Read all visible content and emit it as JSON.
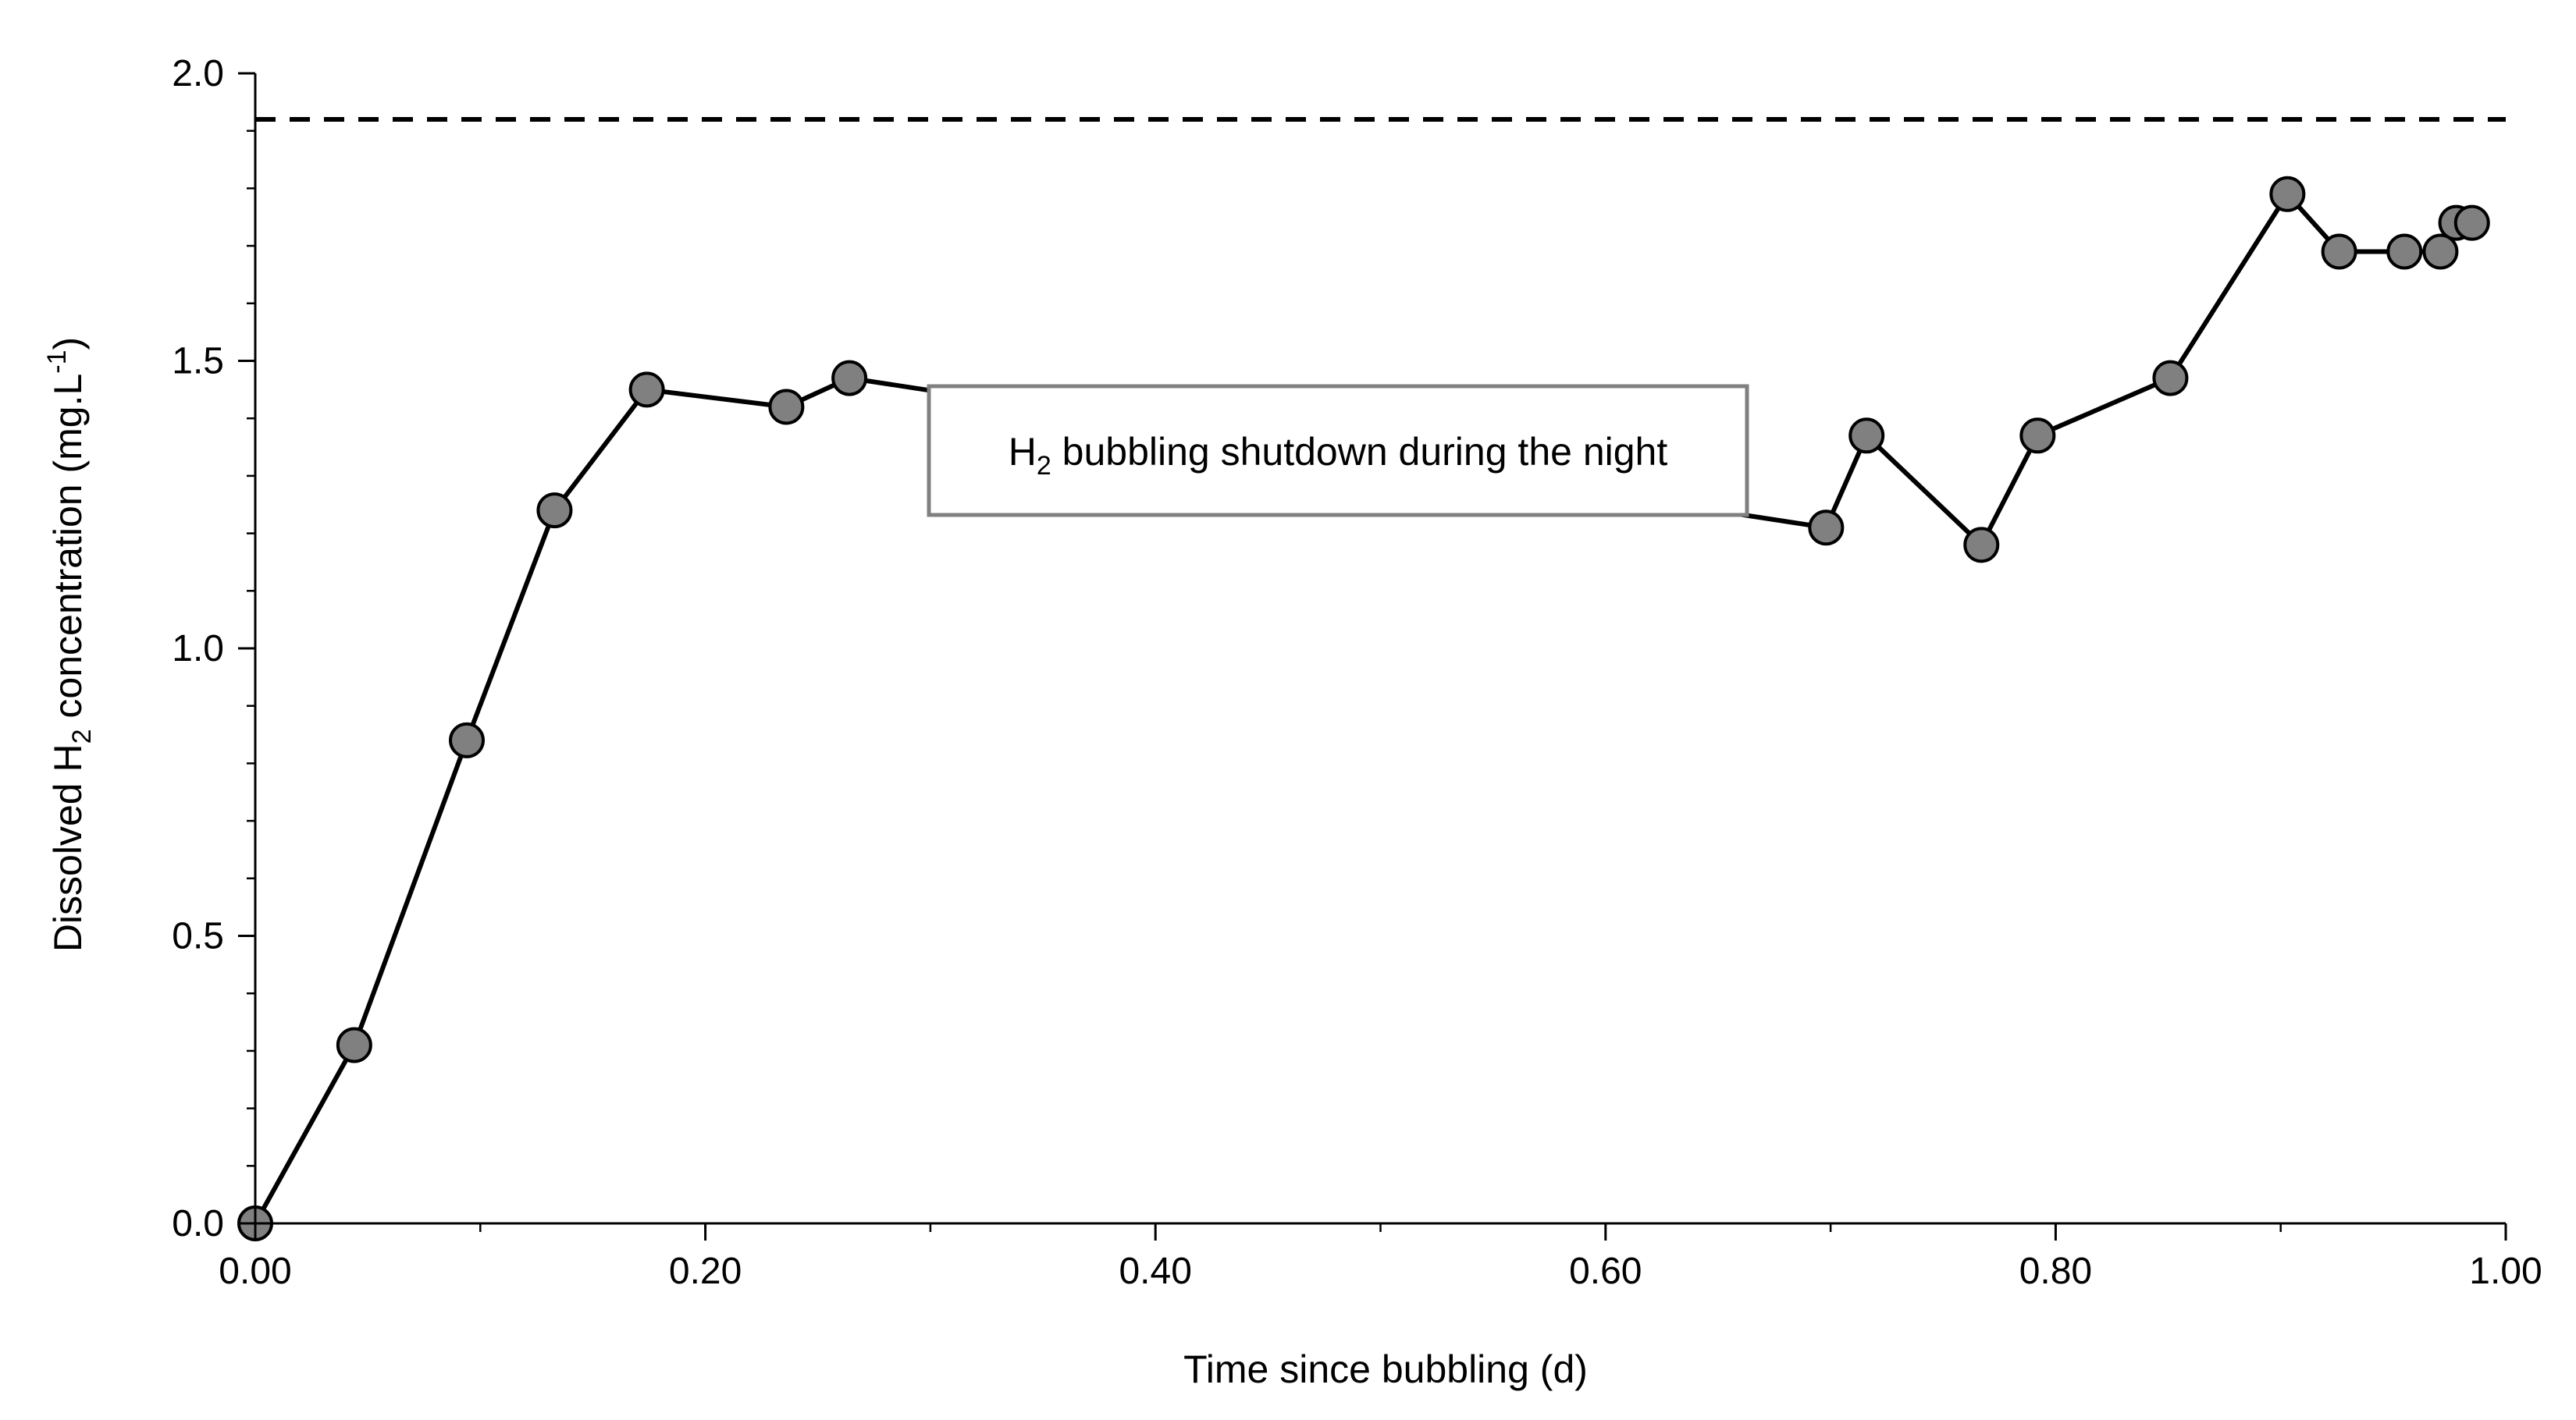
{
  "chart_data": {
    "type": "line",
    "xlabel": "Time since bubbling (d)",
    "ylabel": {
      "prefix": "Dissolved H",
      "sub": "2",
      "middle": " concentration (mg.L",
      "sup": "-1",
      "suffix": ")"
    },
    "xlim": [
      0,
      1.0
    ],
    "ylim": [
      0,
      2.0
    ],
    "x_ticks": [
      {
        "value": 0.0,
        "label": "0.00"
      },
      {
        "value": 0.2,
        "label": "0.20"
      },
      {
        "value": 0.4,
        "label": "0.40"
      },
      {
        "value": 0.6,
        "label": "0.60"
      },
      {
        "value": 0.8,
        "label": "0.80"
      },
      {
        "value": 1.0,
        "label": "1.00"
      }
    ],
    "y_ticks": [
      {
        "value": 0.0,
        "label": "0.0"
      },
      {
        "value": 0.5,
        "label": "0.5"
      },
      {
        "value": 1.0,
        "label": "1.0"
      },
      {
        "value": 1.5,
        "label": "1.5"
      },
      {
        "value": 2.0,
        "label": "2.0"
      }
    ],
    "x_minor_step": 0.1,
    "y_minor_step": 0.1,
    "grid": false,
    "reference_line": {
      "y": 1.92,
      "style": "dashed"
    },
    "series": [
      {
        "x": [
          0.0,
          0.044,
          0.094,
          0.133,
          0.174,
          0.236,
          0.264,
          0.698,
          0.716,
          0.767,
          0.792,
          0.851,
          0.903,
          0.926,
          0.955,
          0.971,
          0.978,
          0.985
        ],
        "y": [
          0.0,
          0.31,
          0.84,
          1.24,
          1.45,
          1.42,
          1.47,
          1.21,
          1.37,
          1.18,
          1.37,
          1.47,
          1.79,
          1.69,
          1.69,
          1.69,
          1.74,
          1.74
        ],
        "line_color": "#000000",
        "marker_color": "#808080"
      }
    ],
    "annotation": {
      "prefix": "H",
      "sub": "2",
      "suffix": " bubbling shutdown during the night",
      "anchor": {
        "x": 0.505,
        "y": 1.35
      }
    }
  }
}
